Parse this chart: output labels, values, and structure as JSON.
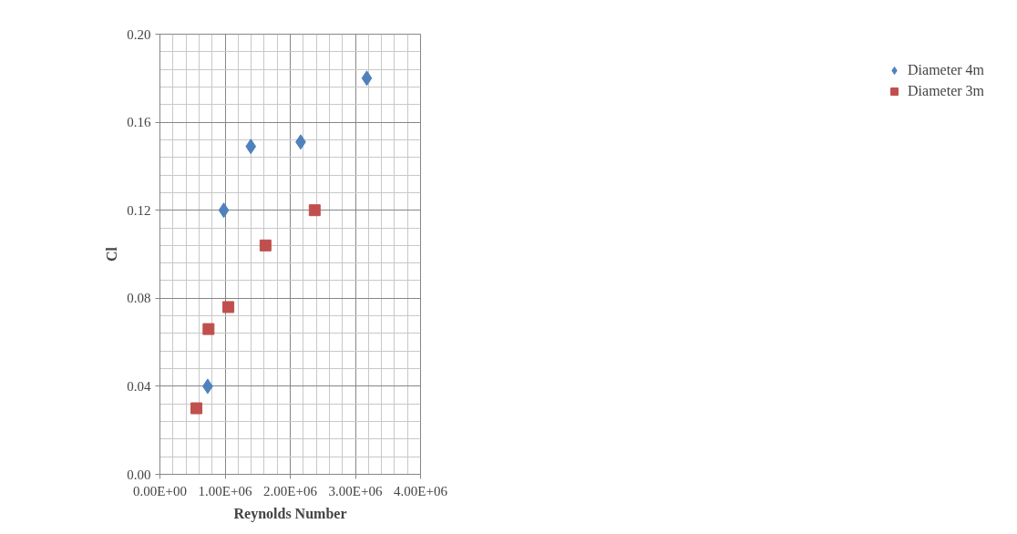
{
  "chart_data": {
    "type": "scatter",
    "xlabel": "Reynolds Number",
    "ylabel": "Cl",
    "series": [
      {
        "name": "Diameter 4m",
        "color": "#4f81bd",
        "marker": "diamond",
        "x": [
          733000,
          980000,
          1395000,
          2160000,
          3175000
        ],
        "values": [
          0.04,
          0.12,
          0.149,
          0.151,
          0.18
        ]
      },
      {
        "name": "Diameter 3m",
        "color": "#c0504d",
        "marker": "square",
        "x": [
          560000,
          746000,
          1050000,
          1620000,
          2375000
        ],
        "values": [
          0.03,
          0.066,
          0.076,
          0.104,
          0.12
        ]
      }
    ],
    "xlim": [
      0,
      4000000
    ],
    "ylim": [
      0,
      0.2
    ],
    "xticks": [
      {
        "value": 0,
        "label": "0.00E+00"
      },
      {
        "value": 1000000,
        "label": "1.00E+06"
      },
      {
        "value": 2000000,
        "label": "2.00E+06"
      },
      {
        "value": 3000000,
        "label": "3.00E+06"
      },
      {
        "value": 4000000,
        "label": "4.00E+06"
      }
    ],
    "yticks": [
      {
        "value": 0,
        "label": "0.00"
      },
      {
        "value": 0.04,
        "label": "0.04"
      },
      {
        "value": 0.08,
        "label": "0.08"
      },
      {
        "value": 0.12,
        "label": "0.12"
      },
      {
        "value": 0.16,
        "label": "0.16"
      },
      {
        "value": 0.2,
        "label": "0.20"
      }
    ],
    "grid": true,
    "legend": "right"
  }
}
